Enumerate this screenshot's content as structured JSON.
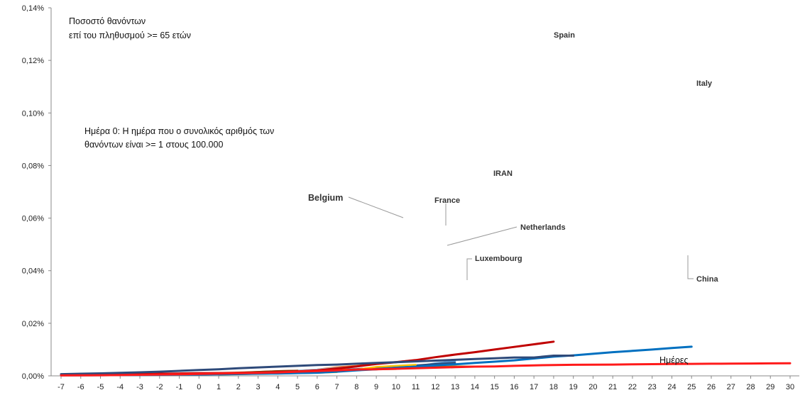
{
  "chart_data": {
    "type": "line",
    "notes": [
      "Ποσοστό θανόντων",
      "επί του πληθυσμού >= 65 ετών",
      "Ημέρα 0: Η ημέρα που ο συνολικός αριθμός των",
      "θανόντων είναι >= 1 στους 100.000"
    ],
    "xlabel": "Ημέρες",
    "xlim": [
      -7,
      30
    ],
    "ylim": [
      0,
      0.14
    ],
    "y_tick_labels": [
      "0,00%",
      "0,02%",
      "0,04%",
      "0,06%",
      "0,08%",
      "0,10%",
      "0,12%",
      "0,14%"
    ],
    "x_tick_labels": [
      "-7",
      "-6",
      "-5",
      "-4",
      "-3",
      "-2",
      "-1",
      "0",
      "1",
      "2",
      "3",
      "4",
      "5",
      "6",
      "7",
      "8",
      "9",
      "10",
      "11",
      "12",
      "13",
      "14",
      "15",
      "16",
      "17",
      "18",
      "19",
      "20",
      "21",
      "22",
      "23",
      "24",
      "25",
      "26",
      "27",
      "28",
      "29",
      "30"
    ],
    "grid": false,
    "series": [
      {
        "name": "Spain",
        "color": "#c00000",
        "emphasis": true,
        "x": [
          -7,
          -6,
          -5,
          -4,
          -3,
          -2,
          -1,
          0,
          1,
          2,
          3,
          4,
          5,
          6,
          7,
          8,
          9,
          10,
          11,
          12,
          13,
          14,
          15,
          16,
          17,
          18
        ],
        "y": [
          0.0004,
          0.00045,
          0.0005,
          0.0006,
          0.0007,
          0.0008,
          0.0009,
          0.001,
          0.00105,
          0.0011,
          0.0012,
          0.0014,
          0.0017,
          0.0021,
          0.0028,
          0.0036,
          0.0045,
          0.0052,
          0.006,
          0.0071,
          0.0081,
          0.009,
          0.01,
          0.011,
          0.012,
          0.013
        ]
      },
      {
        "name": "Italy",
        "color": "#0070c0",
        "emphasis": true,
        "x": [
          -7,
          -6,
          -5,
          -4,
          -3,
          -2,
          -1,
          0,
          1,
          2,
          3,
          4,
          5,
          6,
          7,
          8,
          9,
          10,
          11,
          12,
          13,
          14,
          15,
          16,
          17,
          18,
          19,
          20,
          21,
          22,
          23,
          24,
          25
        ],
        "y": [
          0.0002,
          0.00022,
          0.00025,
          0.0003,
          0.00035,
          0.0004,
          0.0005,
          0.0005,
          0.0006,
          0.0007,
          0.0008,
          0.0009,
          0.00105,
          0.0012,
          0.0016,
          0.0021,
          0.0025,
          0.0031,
          0.0035,
          0.004,
          0.0044,
          0.0049,
          0.0054,
          0.0059,
          0.0066,
          0.0073,
          0.0078,
          0.0084,
          0.009,
          0.0095,
          0.01,
          0.0106,
          0.0111
        ]
      },
      {
        "name": "IRAN",
        "color": "#2e4a7a",
        "emphasis": true,
        "x": [
          -7,
          -6,
          -5,
          -4,
          -3,
          -2,
          -1,
          0,
          1,
          2,
          3,
          4,
          5,
          6,
          7,
          8,
          9,
          10,
          11,
          12,
          13,
          14,
          15,
          16,
          17,
          18,
          19
        ],
        "y": [
          0.00065,
          0.0008,
          0.00095,
          0.00115,
          0.00135,
          0.0016,
          0.0019,
          0.0022,
          0.0025,
          0.0029,
          0.0032,
          0.0035,
          0.0038,
          0.0041,
          0.0043,
          0.0046,
          0.0049,
          0.0052,
          0.0055,
          0.0058,
          0.0061,
          0.0064,
          0.0067,
          0.007,
          0.007,
          0.0077,
          0.0077
        ]
      },
      {
        "name": "China",
        "color": "#ff1a1a",
        "emphasis": true,
        "x": [
          -7,
          -6,
          -5,
          -4,
          -3,
          -2,
          -1,
          0,
          1,
          2,
          3,
          4,
          5,
          6,
          7,
          8,
          9,
          10,
          11,
          12,
          13,
          14,
          15,
          16,
          17,
          18,
          19,
          20,
          21,
          22,
          23,
          24,
          25,
          26,
          27,
          28,
          29,
          30
        ],
        "y": [
          0.00015,
          0.0002,
          0.00025,
          0.0003,
          0.0004,
          0.0005,
          0.0006,
          0.00075,
          0.0009,
          0.001,
          0.0011,
          0.0013,
          0.0016,
          0.0018,
          0.0021,
          0.0024,
          0.0025,
          0.0027,
          0.0029,
          0.0031,
          0.0033,
          0.0035,
          0.0036,
          0.0038,
          0.004,
          0.0041,
          0.0042,
          0.00425,
          0.0043,
          0.0044,
          0.00445,
          0.0045,
          0.00455,
          0.0046,
          0.00465,
          0.0047,
          0.00475,
          0.0048
        ]
      },
      {
        "name": "Belgium",
        "color": "#ed7d31",
        "emphasis": false,
        "x": [
          -2,
          -1,
          0,
          1,
          2,
          3,
          4,
          5,
          6,
          7,
          8,
          9,
          10,
          11
        ],
        "y": [
          0.00065,
          0.0008,
          0.0009,
          0.0011,
          0.0013,
          0.0015,
          0.0018,
          0.002,
          0.0024,
          0.0033,
          0.0038,
          0.0047,
          0.0053,
          0.006
        ]
      },
      {
        "name": "France",
        "color": "#5b9bd5",
        "emphasis": false,
        "x": [
          -7,
          -6,
          -5,
          -4,
          -3,
          -2,
          -1,
          0,
          1,
          2,
          3,
          4,
          5,
          6,
          7,
          8,
          9,
          10,
          11,
          12,
          13
        ],
        "y": [
          0.0002,
          0.00022,
          0.00025,
          0.0003,
          0.00035,
          0.0004,
          0.0005,
          0.0006,
          0.0007,
          0.0008,
          0.0009,
          0.0011,
          0.0013,
          0.0015,
          0.0018,
          0.0022,
          0.0026,
          0.003,
          0.0035,
          0.0048,
          0.0056
        ]
      },
      {
        "name": "Netherlands",
        "color": "#2e4a7a",
        "emphasis": false,
        "x": [
          -1,
          0,
          1,
          2,
          3,
          4,
          5,
          6,
          7,
          8,
          9,
          10,
          11,
          12,
          13
        ],
        "y": [
          0.0005,
          0.0006,
          0.0007,
          0.0008,
          0.001,
          0.0012,
          0.0015,
          0.0019,
          0.0023,
          0.0026,
          0.0031,
          0.0035,
          0.004,
          0.0045,
          0.005
        ]
      },
      {
        "name": "Luxembourg",
        "color": "#997300",
        "emphasis": false,
        "x": [
          -1,
          0,
          1,
          2,
          3,
          4,
          5,
          6,
          7,
          8,
          9,
          10,
          11,
          12,
          13,
          14
        ],
        "y": [
          0.0006,
          0.0008,
          0.001,
          0.0012,
          0.0014,
          0.0017,
          0.0019,
          0.002,
          0.0022,
          0.0023,
          0.0025,
          0.0026,
          0.0033,
          0.0034,
          0.0036,
          0.0036
        ]
      },
      {
        "name": "",
        "color": "#9dc3e6",
        "emphasis": false,
        "x": [
          -3,
          -2,
          -1,
          0,
          1,
          2,
          3,
          4,
          5,
          6,
          7,
          8
        ],
        "y": [
          0.0004,
          0.0005,
          0.0006,
          0.0007,
          0.0009,
          0.0011,
          0.0013,
          0.0016,
          0.002,
          0.0024,
          0.003,
          0.0035
        ]
      },
      {
        "name": "",
        "color": "#ffc000",
        "emphasis": false,
        "x": [
          -1,
          0,
          1,
          2,
          3,
          4,
          5,
          6,
          7,
          8,
          9,
          10,
          11
        ],
        "y": [
          0.0005,
          0.0006,
          0.0007,
          0.0009,
          0.0011,
          0.0013,
          0.0016,
          0.0019,
          0.0023,
          0.0024,
          0.0034,
          0.0038,
          0.0042
        ]
      },
      {
        "name": "",
        "color": "#ffc000",
        "emphasis": false,
        "x": [
          3,
          4,
          5,
          6,
          7
        ],
        "y": [
          0.0008,
          0.0009,
          0.0011,
          0.0012,
          0.0014
        ]
      },
      {
        "name": "",
        "color": "#70ad47",
        "emphasis": false,
        "x": [
          -7,
          -6,
          -5,
          -4,
          -3,
          -2,
          -1,
          0,
          1,
          2,
          3,
          4,
          5
        ],
        "y": [
          0.0003,
          0.00032,
          0.00035,
          0.0004,
          0.00045,
          0.0005,
          0.0006,
          0.0007,
          0.0008,
          0.0009,
          0.001,
          0.0011,
          0.0012
        ]
      },
      {
        "name": "",
        "color": "#548235",
        "emphasis": false,
        "x": [
          1,
          2,
          3,
          4,
          5,
          6
        ],
        "y": [
          0.0005,
          0.0006,
          0.0008,
          0.0009,
          0.001,
          0.0012
        ]
      },
      {
        "name": "",
        "color": "#a5a5a5",
        "emphasis": false,
        "x": [
          -4,
          -3,
          -2,
          -1,
          0,
          1,
          2,
          3,
          4,
          5,
          6,
          7
        ],
        "y": [
          0.0003,
          0.0004,
          0.0005,
          0.0006,
          0.0008,
          0.0009,
          0.0011,
          0.0012,
          0.0014,
          0.0015,
          0.0016,
          0.0018
        ]
      },
      {
        "name": "",
        "color": "#843c0c",
        "emphasis": false,
        "x": [
          -3,
          -2,
          -1,
          0,
          1,
          2,
          3,
          4,
          5
        ],
        "y": [
          0.0006,
          0.0007,
          0.0008,
          0.0009,
          0.001,
          0.0012,
          0.0015,
          0.0018,
          0.002
        ]
      },
      {
        "name": "",
        "color": "#4472c4",
        "emphasis": false,
        "x": [
          -5,
          -4,
          -3,
          -2,
          -1,
          0,
          1,
          2,
          3,
          4,
          5,
          6,
          7,
          8,
          9,
          10
        ],
        "y": [
          0.0003,
          0.00035,
          0.0004,
          0.0005,
          0.0006,
          0.0007,
          0.0008,
          0.001,
          0.0012,
          0.0014,
          0.0016,
          0.0019,
          0.0021,
          0.0023,
          0.0026,
          0.0029
        ]
      }
    ],
    "labels": [
      "Spain",
      "Italy",
      "IRAN",
      "France",
      "Belgium",
      "Netherlands",
      "Luxembourg",
      "China"
    ]
  }
}
